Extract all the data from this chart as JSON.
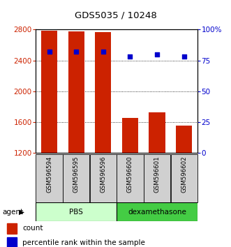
{
  "title": "GDS5035 / 10248",
  "samples": [
    "GSM596594",
    "GSM596595",
    "GSM596596",
    "GSM596600",
    "GSM596601",
    "GSM596602"
  ],
  "counts": [
    2790,
    2775,
    2770,
    1660,
    1730,
    1560
  ],
  "percentiles": [
    82,
    82,
    82,
    78,
    80,
    78
  ],
  "ymin": 1200,
  "ymax": 2800,
  "yticks": [
    1200,
    1600,
    2000,
    2400,
    2800
  ],
  "y2min": 0,
  "y2max": 100,
  "y2ticks": [
    0,
    25,
    50,
    75,
    100
  ],
  "y2ticklabels": [
    "0",
    "25",
    "50",
    "75",
    "100%"
  ],
  "bar_color": "#cc2200",
  "dot_color": "#0000cc",
  "bar_width": 0.6,
  "pbs_color": "#ccffcc",
  "dexa_color": "#44cc44",
  "pbs_label": "PBS",
  "dexa_label": "dexamethasone",
  "pbs_indices": [
    0,
    1,
    2
  ],
  "dexa_indices": [
    3,
    4,
    5
  ],
  "agent_label": "agent",
  "legend_count_label": "count",
  "legend_pct_label": "percentile rank within the sample",
  "tick_color_left": "#cc2200",
  "tick_color_right": "#0000cc",
  "background_color": "#ffffff"
}
